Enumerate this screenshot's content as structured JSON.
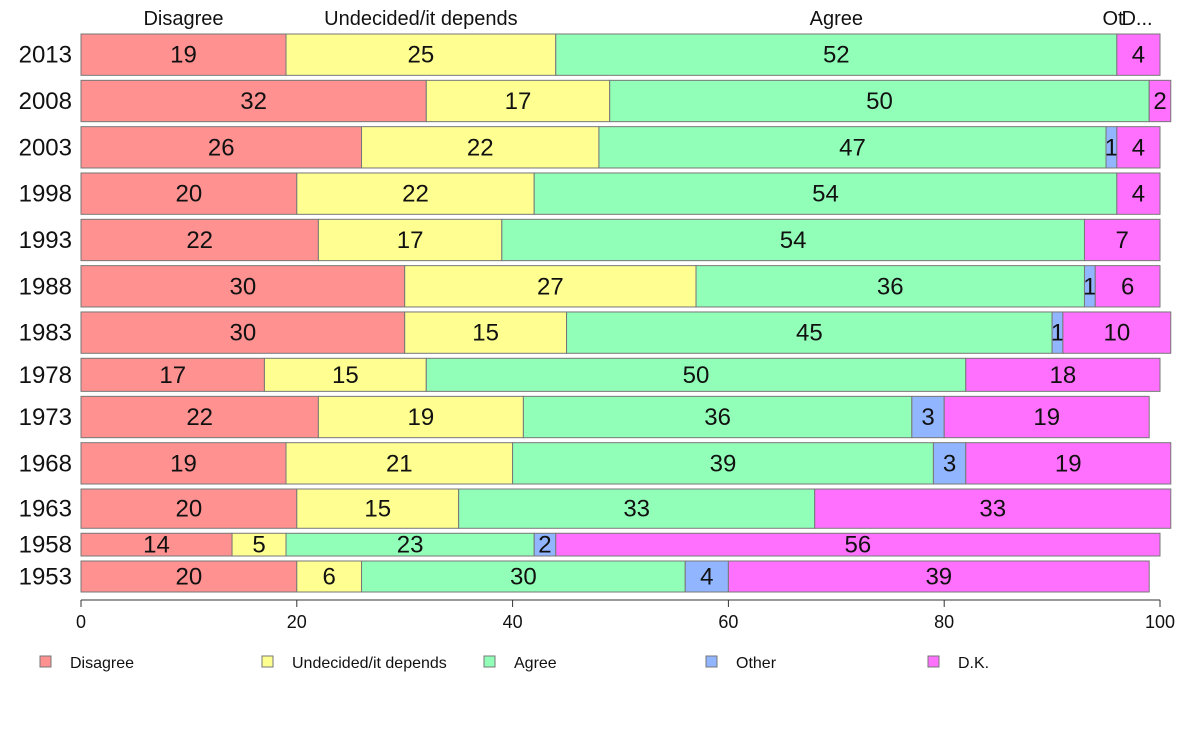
{
  "chart_data": {
    "type": "bar",
    "orientation": "horizontal",
    "stacked": true,
    "categories": [
      "2013",
      "2008",
      "2003",
      "1998",
      "1993",
      "1988",
      "1983",
      "1978",
      "1973",
      "1968",
      "1963",
      "1958",
      "1953"
    ],
    "series": [
      {
        "name": "Disagree",
        "color": "#ff9191",
        "values": [
          19,
          32,
          26,
          20,
          22,
          30,
          30,
          17,
          22,
          19,
          20,
          14,
          20
        ]
      },
      {
        "name": "Undecided/it depends",
        "color": "#ffff91",
        "values": [
          25,
          17,
          22,
          22,
          17,
          27,
          15,
          15,
          19,
          21,
          15,
          5,
          6
        ]
      },
      {
        "name": "Agree",
        "color": "#91ffb8",
        "values": [
          52,
          50,
          47,
          54,
          54,
          36,
          45,
          50,
          36,
          39,
          33,
          23,
          30
        ]
      },
      {
        "name": "Other",
        "color": "#91b5ff",
        "values": [
          0,
          0,
          1,
          0,
          0,
          1,
          1,
          0,
          3,
          3,
          0,
          2,
          4
        ]
      },
      {
        "name": "D.K.",
        "color": "#ff70ff",
        "values": [
          4,
          2,
          4,
          4,
          7,
          6,
          10,
          18,
          19,
          19,
          33,
          56,
          39
        ]
      }
    ],
    "top_labels": [
      "Disagree",
      "Undecided/it depends",
      "Agree",
      "Ot",
      "D..."
    ],
    "xlim": [
      0,
      100
    ],
    "xticks": [
      "0",
      "20",
      "40",
      "60",
      "80",
      "100"
    ],
    "grid": false,
    "legend_position": "bottom"
  }
}
